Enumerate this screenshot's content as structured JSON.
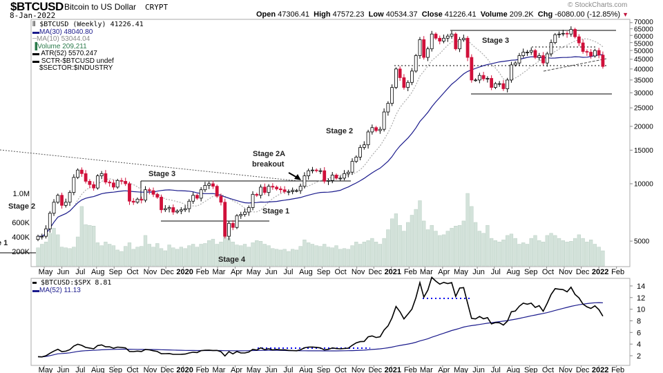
{
  "header": {
    "symbol": "$BTCUSD",
    "name": "Bitcoin to US Dollar",
    "exchange": "CRYPT",
    "date": "8-Jan-2022",
    "watermark": "© StockCharts.com",
    "open_label": "Open",
    "open": "47306.41",
    "high_label": "High",
    "high": "47572.23",
    "low_label": "Low",
    "low": "40534.37",
    "close_label": "Close",
    "close": "41226.41",
    "volume_label": "Volume",
    "volume": "209.2K",
    "chg_label": "Chg",
    "chg": "-6080.00 (-12.85%)"
  },
  "legend": {
    "price": "$BTCUSD (Weekly) 41226.41",
    "ma30": "MA(30) 48040.80",
    "ma10": "MA(10) 53044.04",
    "volume": "Volume 209,211",
    "atr": "ATR(52) 5570.247",
    "sctr": "SCTR-$BTCUSD undef",
    "sector": "$SECTOR:$INDUSTRY"
  },
  "lower_legend": {
    "ratio": "$BTCUSD:$SPX 8.81",
    "ma52": "MA(52) 11.13"
  },
  "annotations": {
    "stage2_left": "Stage 2",
    "stage1_left": "e 1",
    "stage3_2019": "Stage 3",
    "stage2a": "Stage 2A",
    "breakout": "breakout",
    "stage1_2020": "Stage 1",
    "stage4": "Stage 4",
    "stage2_2020": "Stage 2",
    "stage3_2021": "Stage 3"
  },
  "colors": {
    "up": "#ffffff",
    "down": "#d0103a",
    "ma30": "#1a1a8c",
    "ma10": "#aaaaaa",
    "volume": "#d3e2da",
    "ratio": "#000000",
    "ma52": "#1a1a8c",
    "dotted": "#0000ee"
  },
  "chart_data": {
    "type": "candlestick",
    "title": "$BTCUSD Bitcoin to US Dollar (Weekly)",
    "x_start": "2019-04-20",
    "x_interval": "weekly",
    "first_open": 5100,
    "close": [
      5300,
      5300,
      5800,
      7000,
      8000,
      8700,
      7700,
      8000,
      9000,
      10800,
      11800,
      11300,
      10300,
      9900,
      9500,
      11000,
      11300,
      10200,
      10100,
      9600,
      10400,
      10300,
      10000,
      8100,
      8000,
      8300,
      8200,
      9300,
      9200,
      8800,
      8500,
      7300,
      7400,
      7500,
      7100,
      7200,
      7300,
      7400,
      8100,
      8700,
      8400,
      9300,
      9800,
      10000,
      9700,
      8600,
      8000,
      5300,
      6200,
      5900,
      6800,
      6900,
      7100,
      7500,
      8800,
      8700,
      9600,
      9000,
      9700,
      9600,
      9400,
      9300,
      9100,
      9100,
      9200,
      9200,
      9700,
      11000,
      11700,
      11800,
      11700,
      11700,
      10300,
      10400,
      11100,
      10700,
      10700,
      11300,
      11500,
      13100,
      13800,
      15500,
      16000,
      18700,
      19700,
      19000,
      19300,
      23800,
      26400,
      32000,
      40000,
      36000,
      32000,
      34000,
      39000,
      47000,
      57000,
      46000,
      51000,
      61000,
      58000,
      56000,
      58000,
      59500,
      61000,
      51000,
      57000,
      58000,
      46000,
      35000,
      35000,
      37000,
      35500,
      35700,
      32000,
      33500,
      33500,
      31500,
      35000,
      42000,
      43000,
      47000,
      49000,
      49000,
      50000,
      46000,
      47000,
      43000,
      48000,
      55000,
      60500,
      61000,
      61500,
      61000,
      64500,
      59000,
      54800,
      49400,
      49000,
      46800,
      50000,
      47300,
      41226.41
    ],
    "volume_k": [
      250,
      300,
      330,
      450,
      520,
      430,
      260,
      250,
      240,
      260,
      400,
      820,
      570,
      560,
      550,
      320,
      280,
      330,
      300,
      280,
      220,
      200,
      270,
      320,
      230,
      260,
      270,
      420,
      300,
      260,
      310,
      240,
      210,
      290,
      250,
      230,
      260,
      240,
      280,
      300,
      260,
      300,
      310,
      350,
      370,
      300,
      330,
      600,
      380,
      330,
      290,
      280,
      300,
      260,
      320,
      350,
      340,
      300,
      280,
      240,
      230,
      220,
      230,
      200,
      230,
      220,
      270,
      360,
      320,
      300,
      280,
      270,
      300,
      260,
      250,
      280,
      230,
      240,
      230,
      280,
      330,
      300,
      330,
      350,
      380,
      330,
      300,
      380,
      500,
      650,
      720,
      560,
      480,
      600,
      700,
      780,
      900,
      620,
      500,
      560,
      480,
      420,
      430,
      480,
      520,
      550,
      560,
      620,
      1000,
      820,
      600,
      480,
      450,
      560,
      380,
      350,
      330,
      360,
      420,
      440,
      380,
      300,
      320,
      300,
      380,
      420,
      350,
      330,
      420,
      450,
      420,
      380,
      350,
      330,
      340,
      380,
      430,
      380,
      330,
      360,
      300,
      260,
      209
    ],
    "ratio_spx": [
      1.83,
      1.8,
      2.0,
      2.43,
      2.8,
      3.1,
      2.7,
      2.78,
      3.05,
      3.66,
      3.97,
      3.78,
      3.42,
      3.32,
      3.19,
      3.75,
      3.87,
      3.53,
      3.54,
      3.28,
      3.49,
      3.43,
      3.34,
      2.74,
      2.71,
      2.79,
      2.73,
      3.08,
      3.01,
      2.85,
      2.72,
      2.35,
      2.36,
      2.38,
      2.24,
      2.24,
      2.25,
      2.29,
      2.48,
      2.61,
      2.55,
      2.88,
      2.94,
      2.96,
      2.9,
      2.92,
      2.69,
      1.96,
      2.7,
      2.32,
      2.73,
      2.47,
      2.47,
      2.64,
      3.11,
      2.97,
      3.36,
      3.05,
      3.19,
      3.01,
      3.09,
      3.0,
      3.02,
      2.91,
      2.89,
      2.85,
      3.02,
      3.36,
      3.49,
      3.5,
      3.44,
      3.34,
      3.0,
      3.11,
      3.34,
      3.24,
      3.19,
      3.25,
      3.3,
      3.79,
      4.22,
      4.42,
      4.46,
      5.25,
      5.41,
      5.14,
      5.27,
      6.42,
      7.14,
      8.51,
      10.47,
      9.55,
      8.33,
      9.15,
      10.0,
      11.96,
      14.58,
      12.07,
      13.28,
      15.48,
      14.83,
      14.32,
      14.61,
      14.41,
      14.58,
      12.2,
      13.64,
      13.71,
      11.03,
      8.42,
      8.33,
      8.75,
      8.35,
      8.56,
      7.48,
      7.7,
      7.67,
      7.27,
      7.94,
      9.56,
      9.68,
      10.51,
      11.04,
      10.86,
      11.04,
      10.31,
      10.61,
      9.65,
      11.01,
      12.53,
      13.53,
      13.44,
      13.37,
      12.98,
      13.78,
      12.55,
      11.94,
      10.88,
      10.4,
      10.13,
      10.57,
      9.92,
      8.81
    ],
    "price_ticks": [
      70000,
      65000,
      60000,
      55000,
      50000,
      45000,
      40000,
      35000,
      30000,
      25000,
      20000,
      15000,
      10000,
      5000
    ],
    "volume_ticks": [
      {
        "v": 1000,
        "label": "1.0M"
      },
      {
        "v": 600,
        "label": "600K"
      },
      {
        "v": 400,
        "label": "400K"
      },
      {
        "v": 200,
        "label": "200K"
      }
    ],
    "ratio_ticks": [
      14,
      12,
      10,
      8,
      6,
      4,
      2
    ],
    "x_ticks": [
      "May",
      "Jun",
      "Jul",
      "Aug",
      "Sep",
      "Oct",
      "Nov",
      "Dec",
      "2020",
      "Feb",
      "Mar",
      "Apr",
      "May",
      "Jun",
      "Jul",
      "Aug",
      "Sep",
      "Oct",
      "Nov",
      "Dec",
      "2021",
      "Feb",
      "Mar",
      "Apr",
      "May",
      "Jun",
      "Jul",
      "Aug",
      "Sep",
      "Oct",
      "Nov",
      "Dec",
      "2022",
      "Feb"
    ],
    "y_scale": "log",
    "ylim": [
      4000,
      72000
    ],
    "ratio_ylim": [
      1,
      15.5
    ],
    "overlays": [
      "MA(30)",
      "MA(10)",
      "Volume"
    ],
    "lower_overlays": [
      "MA(52)"
    ]
  }
}
